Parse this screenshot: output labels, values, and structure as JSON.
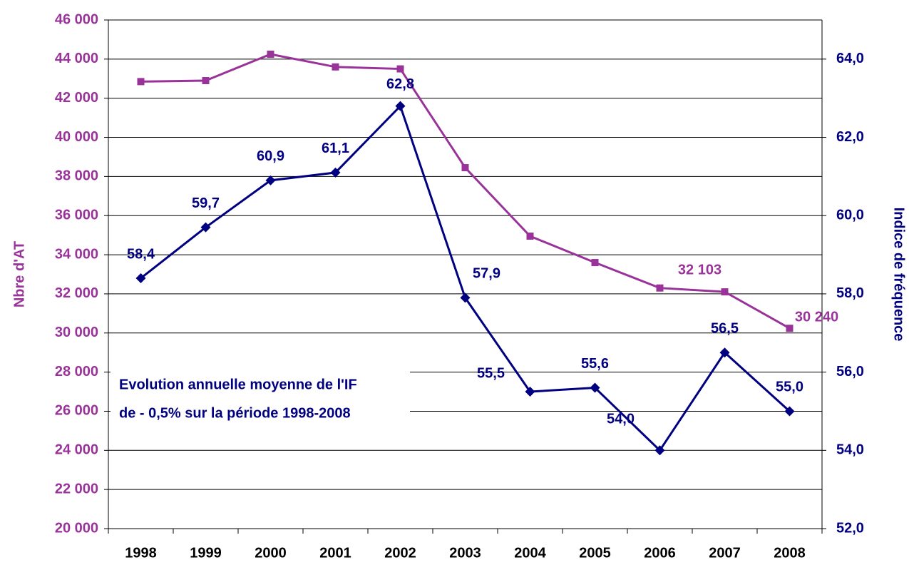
{
  "chart_data": {
    "type": "line",
    "categories": [
      "1998",
      "1999",
      "2000",
      "2001",
      "2002",
      "2003",
      "2004",
      "2005",
      "2006",
      "2007",
      "2008"
    ],
    "y_label": "Nbre d'AT",
    "y2_label": "Indice de fréquence",
    "annotation": [
      "Evolution annuelle moyenne de l'IF",
      "de - 0,5% sur la période 1998-2008"
    ],
    "ylim": [
      20000,
      46000
    ],
    "yticks": [
      {
        "value": 20000,
        "label": "20 000"
      },
      {
        "value": 22000,
        "label": "22 000"
      },
      {
        "value": 24000,
        "label": "24 000"
      },
      {
        "value": 26000,
        "label": "26 000"
      },
      {
        "value": 28000,
        "label": "28 000"
      },
      {
        "value": 30000,
        "label": "30 000"
      },
      {
        "value": 32000,
        "label": "32 000"
      },
      {
        "value": 34000,
        "label": "34 000"
      },
      {
        "value": 36000,
        "label": "36 000"
      },
      {
        "value": 38000,
        "label": "38 000"
      },
      {
        "value": 40000,
        "label": "40 000"
      },
      {
        "value": 42000,
        "label": "42 000"
      },
      {
        "value": 44000,
        "label": "44 000"
      },
      {
        "value": 46000,
        "label": "46 000"
      }
    ],
    "y2lim": [
      52,
      65
    ],
    "y2ticks": [
      {
        "value": 52,
        "label": "52,0"
      },
      {
        "value": 54,
        "label": "54,0"
      },
      {
        "value": 56,
        "label": "56,0"
      },
      {
        "value": 58,
        "label": "58,0"
      },
      {
        "value": 60,
        "label": "60,0"
      },
      {
        "value": 62,
        "label": "62,0"
      },
      {
        "value": 64,
        "label": "64,0"
      }
    ],
    "grid": true,
    "series": [
      {
        "color": "#993399",
        "marker": "square",
        "values": [
          42850,
          42900,
          44250,
          43600,
          43500,
          38450,
          34950,
          33600,
          32300,
          32103,
          30240
        ],
        "value_labels": [
          null,
          null,
          null,
          null,
          null,
          null,
          null,
          null,
          null,
          "32 103",
          "30 240"
        ]
      },
      {
        "color": "#000080",
        "marker": "diamond",
        "axis": "y2",
        "values": [
          58.4,
          59.7,
          60.9,
          61.1,
          62.8,
          57.9,
          55.5,
          55.6,
          54.0,
          56.5,
          55.0
        ],
        "value_labels": [
          "58,4",
          "59,7",
          "60,9",
          "61,1",
          "62,8",
          "57,9",
          "55,5",
          "55,6",
          "54,0",
          "56,5",
          "55,0"
        ]
      }
    ]
  }
}
